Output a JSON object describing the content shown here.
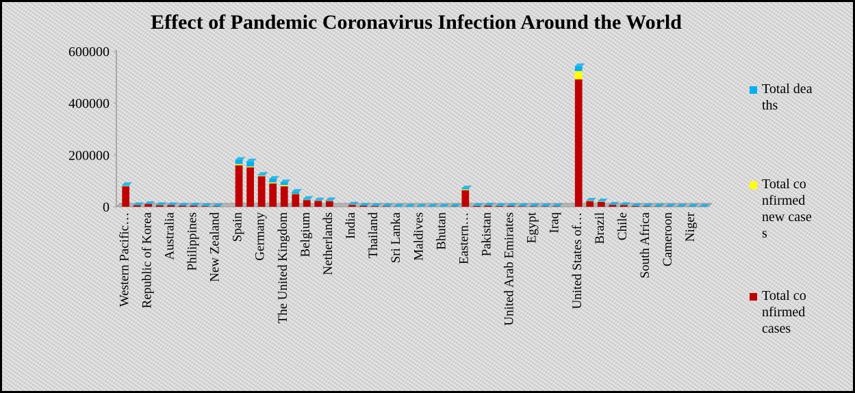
{
  "chart_data": {
    "type": "bar",
    "stacked": true,
    "title": "Effect of Pandemic Coronavirus Infection Around the World",
    "categories": [
      "Western Pacific…",
      null,
      "Republic of Korea",
      null,
      "Australia",
      null,
      "Philippines",
      null,
      "New Zealand",
      null,
      "Spain",
      null,
      "Germany",
      null,
      "The United Kingdom",
      null,
      "Belgium",
      null,
      "Netherlands",
      null,
      "India",
      null,
      "Thailand",
      null,
      "Sri Lanka",
      null,
      "Maldives",
      null,
      "Bhutan",
      null,
      "Eastern…",
      null,
      "Pakistan",
      null,
      "United Arab Emirates",
      null,
      "Egypt",
      null,
      "Iraq",
      null,
      "United States of…",
      null,
      "Brazil",
      null,
      "Chile",
      null,
      "South Africa",
      null,
      "Cameroon",
      null,
      "Niger",
      null
    ],
    "series": [
      {
        "name": "Total confirmed cases",
        "color": "#c00000",
        "values": [
          79000,
          6000,
          10400,
          6000,
          6200,
          4500,
          4400,
          2300,
          1300,
          0,
          160000,
          152000,
          118000,
          90000,
          79000,
          49000,
          26000,
          23000,
          22000,
          0,
          7400,
          4000,
          2500,
          1500,
          200,
          100,
          50,
          300,
          5,
          1000,
          64000,
          3000,
          4600,
          2500,
          3400,
          2000,
          1900,
          1500,
          1300,
          0,
          492000,
          22000,
          19000,
          7500,
          6500,
          2500,
          2000,
          900,
          800,
          500,
          500,
          300
        ]
      },
      {
        "name": "Total confirmed new cases",
        "color": "#ffff00",
        "values": [
          1500,
          200,
          30,
          500,
          100,
          150,
          200,
          200,
          20,
          0,
          5000,
          3500,
          2500,
          4000,
          5000,
          1600,
          1300,
          800,
          1100,
          0,
          900,
          100,
          100,
          50,
          10,
          5,
          2,
          20,
          1,
          50,
          3000,
          200,
          300,
          200,
          150,
          150,
          100,
          100,
          80,
          0,
          32000,
          1300,
          1200,
          400,
          400,
          150,
          100,
          50,
          50,
          30,
          30,
          20
        ]
      },
      {
        "name": "Total deaths",
        "color": "#00b0f0",
        "values": [
          3400,
          100,
          210,
          100,
          60,
          70,
          250,
          10,
          5,
          0,
          16000,
          19500,
          2600,
          13800,
          10600,
          7200,
          3000,
          1000,
          2500,
          0,
          240,
          40,
          10,
          7,
          0,
          0,
          0,
          10,
          0,
          20,
          4000,
          50,
          60,
          10,
          200,
          50,
          100,
          50,
          70,
          0,
          18700,
          550,
          1000,
          250,
          70,
          50,
          20,
          20,
          10,
          10,
          10,
          10
        ]
      }
    ],
    "ylim": [
      0,
      600000
    ],
    "yticks": [
      0,
      200000,
      400000,
      600000
    ],
    "legend": "right"
  }
}
